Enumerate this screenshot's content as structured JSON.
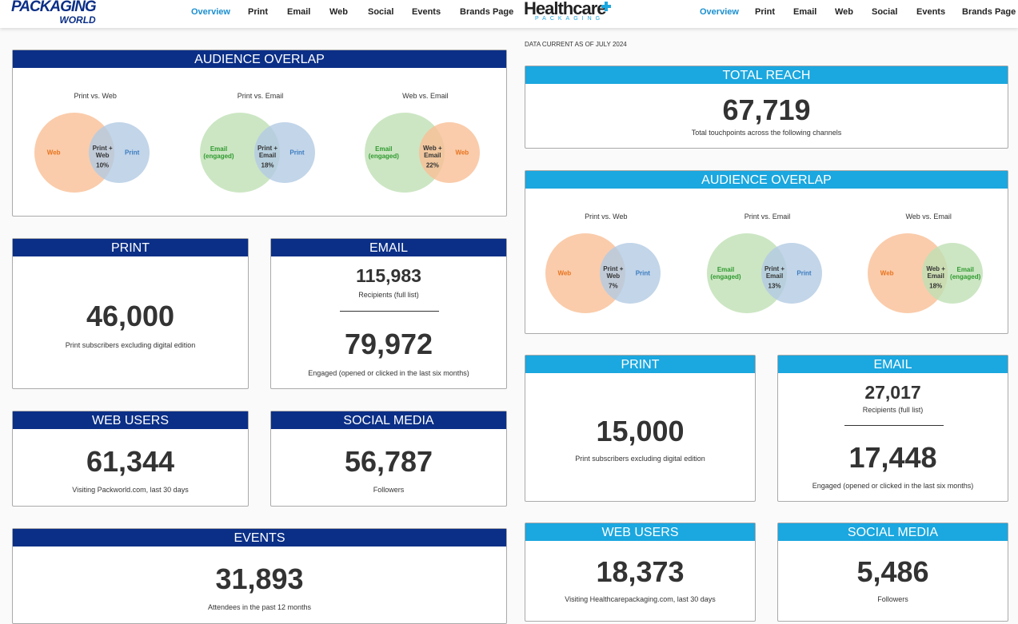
{
  "left": {
    "logo": {
      "name": "PACKAGING",
      "sub": "WORLD"
    },
    "nav": [
      "Overview",
      "Print",
      "Email",
      "Web",
      "Social",
      "Events",
      "Brands Page"
    ],
    "bar_color": "#0b2f87",
    "overlap": {
      "title": "AUDIENCE OVERLAP",
      "venns": [
        {
          "title": "Print vs. Web",
          "a": {
            "label": "Web",
            "color": "#f9bf96",
            "text_color": "#e8731e"
          },
          "b": {
            "label": "Print",
            "color": "#b3cbe4",
            "text_color": "#3a7bbf"
          },
          "both": "Print + Web",
          "share": "10%"
        },
        {
          "title": "Print vs. Email",
          "a": {
            "label": "Email (engaged)",
            "color": "#bfe0b4",
            "text_color": "#2f9a2f"
          },
          "b": {
            "label": "Print",
            "color": "#b3cbe4",
            "text_color": "#3a7bbf"
          },
          "both": "Print + Email",
          "share": "18%"
        },
        {
          "title": "Web vs. Email",
          "a": {
            "label": "Email (engaged)",
            "color": "#bfe0b4",
            "text_color": "#2f9a2f"
          },
          "b": {
            "label": "Web",
            "color": "#f9bf96",
            "text_color": "#e8731e"
          },
          "both": "Web + Email",
          "share": "22%"
        }
      ]
    },
    "print": {
      "title": "PRINT",
      "value": "46,000",
      "caption": "Print subscribers excluding digital edition"
    },
    "email": {
      "title": "EMAIL",
      "recipients": "115,983",
      "recipients_caption": "Recipients (full list)",
      "engaged": "79,972",
      "engaged_caption": "Engaged (opened or clicked in the last six months)"
    },
    "web": {
      "title": "WEB USERS",
      "value": "61,344",
      "caption": "Visiting Packworld.com, last 30 days"
    },
    "social": {
      "title": "SOCIAL MEDIA",
      "value": "56,787",
      "caption": "Followers"
    },
    "events": {
      "title": "EVENTS",
      "value": "31,893",
      "caption": "Attendees in the past 12 months"
    }
  },
  "right": {
    "logo": {
      "name": "Healthcare",
      "sub": "PACKAGING"
    },
    "nav": [
      "Overview",
      "Print",
      "Email",
      "Web",
      "Social",
      "Events",
      "Brands Page"
    ],
    "bar_color": "#1ba7df",
    "as_of": "DATA CURRENT AS OF JULY 2024",
    "reach": {
      "title": "TOTAL REACH",
      "value": "67,719",
      "caption": "Total touchpoints across the following channels"
    },
    "overlap": {
      "title": "AUDIENCE OVERLAP",
      "venns": [
        {
          "title": "Print vs. Web",
          "a": {
            "label": "Web",
            "color": "#f9bf96",
            "text_color": "#e8731e"
          },
          "b": {
            "label": "Print",
            "color": "#b3cbe4",
            "text_color": "#3a7bbf"
          },
          "both": "Print + Web",
          "share": "7%"
        },
        {
          "title": "Print vs. Email",
          "a": {
            "label": "Email (engaged)",
            "color": "#bfe0b4",
            "text_color": "#2f9a2f"
          },
          "b": {
            "label": "Print",
            "color": "#b3cbe4",
            "text_color": "#3a7bbf"
          },
          "both": "Print + Email",
          "share": "13%"
        },
        {
          "title": "Web vs. Email",
          "a": {
            "label": "Web",
            "color": "#f9bf96",
            "text_color": "#e8731e"
          },
          "b": {
            "label": "Email (engaged)",
            "color": "#bfe0b4",
            "text_color": "#2f9a2f"
          },
          "both": "Web + Email",
          "share": "18%"
        }
      ]
    },
    "print": {
      "title": "PRINT",
      "value": "15,000",
      "caption": "Print subscribers excluding digital edition"
    },
    "email": {
      "title": "EMAIL",
      "recipients": "27,017",
      "recipients_caption": "Recipients (full list)",
      "engaged": "17,448",
      "engaged_caption": "Engaged (opened or clicked in the last six months)"
    },
    "web": {
      "title": "WEB USERS",
      "value": "18,373",
      "caption": "Visiting Healthcarepackaging.com, last 30 days"
    },
    "social": {
      "title": "SOCIAL MEDIA",
      "value": "5,486",
      "caption": "Followers"
    }
  }
}
